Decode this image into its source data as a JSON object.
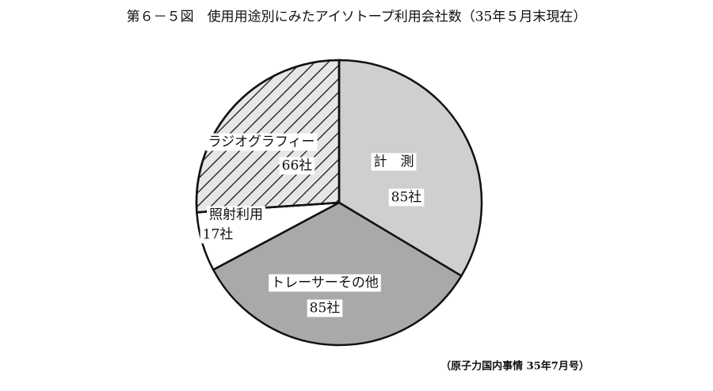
{
  "chart_data": {
    "type": "pie",
    "title": "第６－５図　使用用途別にみたアイソトープ利用会社数（35年５月末現在）",
    "categories": [
      "計　測",
      "トレーサーその他",
      "照射利用",
      "ラジオグラフィー"
    ],
    "values": [
      85,
      85,
      17,
      66
    ],
    "value_labels": [
      "85社",
      "85社",
      "17社",
      "66社"
    ],
    "colors": [
      "#cfcfcf",
      "#a9a9a9",
      "#ffffff",
      "#e6e6e6"
    ],
    "source": "（原子力国内事情 35年7月号）"
  }
}
